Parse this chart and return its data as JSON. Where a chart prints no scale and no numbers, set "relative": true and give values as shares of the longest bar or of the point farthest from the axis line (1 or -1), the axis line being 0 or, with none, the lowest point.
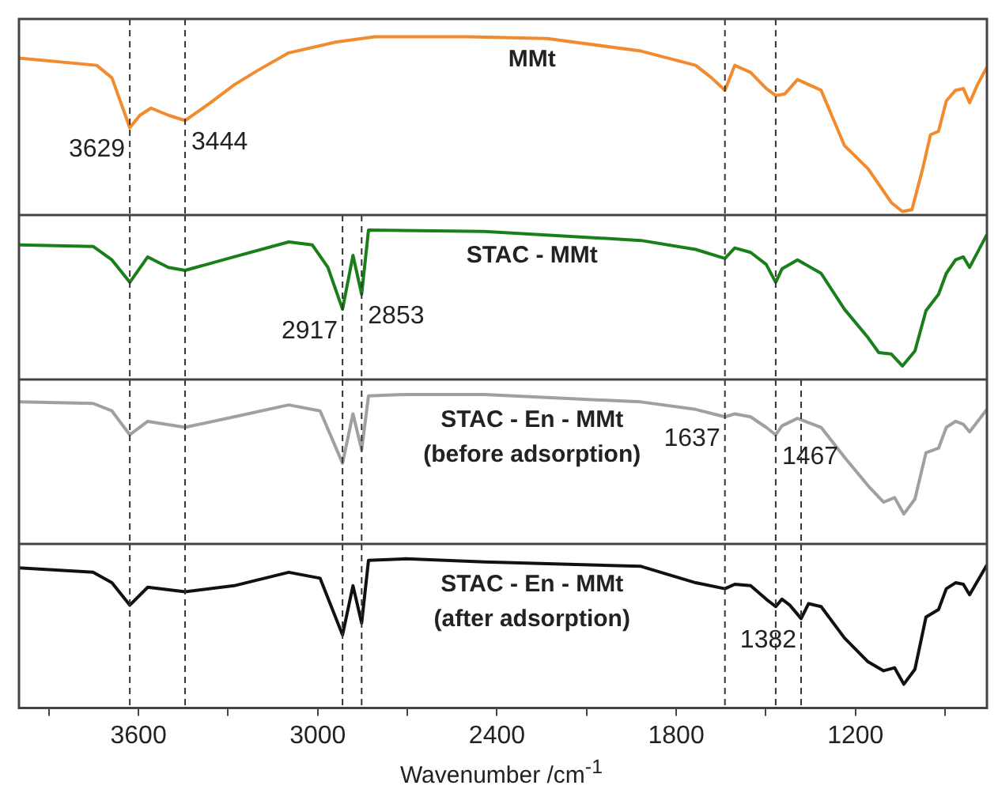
{
  "chart_data": [
    {
      "type": "line",
      "relative": true,
      "xlim": [
        4000,
        760
      ],
      "tick_labels": false,
      "legend": false,
      "grid": false,
      "marker": "none",
      "series": [
        {
          "name": "MMt",
          "color": "#f28a2e",
          "x": [
            4000,
            3740,
            3689,
            3629,
            3595,
            3558,
            3500,
            3444,
            3359,
            3280,
            3202,
            3097,
            2940,
            2809,
            2494,
            2232,
            1918,
            1735,
            1682,
            1637,
            1604,
            1551,
            1499,
            1467,
            1436,
            1394,
            1315,
            1237,
            1158,
            1080,
            1043,
            1011,
            975,
            949,
            922,
            896,
            865,
            839,
            818,
            792,
            760
          ],
          "values": [
            0.88,
            0.84,
            0.77,
            0.49,
            0.56,
            0.6,
            0.56,
            0.53,
            0.63,
            0.73,
            0.81,
            0.91,
            0.97,
            1.0,
            1.0,
            0.99,
            0.92,
            0.84,
            0.77,
            0.7,
            0.84,
            0.8,
            0.71,
            0.67,
            0.68,
            0.76,
            0.7,
            0.39,
            0.26,
            0.07,
            0.02,
            0.03,
            0.26,
            0.45,
            0.47,
            0.64,
            0.7,
            0.71,
            0.63,
            0.73,
            0.83
          ]
        }
      ],
      "ref_lines": [
        {
          "axis": "x",
          "value": 3629,
          "color": "#333333",
          "line_style": "dashed"
        },
        {
          "axis": "x",
          "value": 3444,
          "color": "#333333",
          "line_style": "dashed"
        },
        {
          "axis": "x",
          "value": 1637,
          "color": "#333333",
          "line_style": "dashed"
        },
        {
          "axis": "x",
          "value": 1467,
          "color": "#333333",
          "line_style": "dashed"
        }
      ],
      "annotations": [
        {
          "text": "3629",
          "x": 3629,
          "y": 0.49
        },
        {
          "text": "3444",
          "x": 3444,
          "y": 0.53
        }
      ]
    },
    {
      "type": "line",
      "relative": true,
      "xlim": [
        4000,
        760
      ],
      "tick_labels": false,
      "legend": false,
      "grid": false,
      "marker": "none",
      "series": [
        {
          "name": "STAC - MMt",
          "color": "#1a7f1a",
          "x": [
            4000,
            3752,
            3689,
            3629,
            3569,
            3500,
            3444,
            3280,
            3097,
            3018,
            2966,
            2917,
            2882,
            2853,
            2830,
            2442,
            1918,
            1735,
            1637,
            1604,
            1551,
            1499,
            1467,
            1446,
            1394,
            1315,
            1237,
            1158,
            1122,
            1080,
            1043,
            1001,
            964,
            922,
            896,
            865,
            839,
            818,
            760
          ],
          "values": [
            0.9,
            0.89,
            0.8,
            0.65,
            0.82,
            0.75,
            0.73,
            0.82,
            0.92,
            0.9,
            0.75,
            0.47,
            0.83,
            0.57,
            1.0,
            0.99,
            0.93,
            0.87,
            0.81,
            0.88,
            0.85,
            0.77,
            0.65,
            0.74,
            0.8,
            0.71,
            0.47,
            0.28,
            0.18,
            0.17,
            0.09,
            0.19,
            0.46,
            0.57,
            0.71,
            0.8,
            0.82,
            0.75,
            0.97
          ]
        }
      ],
      "ref_lines": [
        {
          "axis": "x",
          "value": 3629,
          "color": "#333333",
          "line_style": "dashed"
        },
        {
          "axis": "x",
          "value": 3444,
          "color": "#333333",
          "line_style": "dashed"
        },
        {
          "axis": "x",
          "value": 2917,
          "color": "#333333",
          "line_style": "dashed"
        },
        {
          "axis": "x",
          "value": 2853,
          "color": "#333333",
          "line_style": "dashed"
        },
        {
          "axis": "x",
          "value": 1637,
          "color": "#333333",
          "line_style": "dashed"
        },
        {
          "axis": "x",
          "value": 1467,
          "color": "#333333",
          "line_style": "dashed"
        }
      ],
      "annotations": [
        {
          "text": "2917",
          "x": 2917,
          "y": 0.47
        },
        {
          "text": "2853",
          "x": 2853,
          "y": 0.57
        }
      ]
    },
    {
      "type": "line",
      "relative": true,
      "xlim": [
        4000,
        760
      ],
      "tick_labels": false,
      "legend": false,
      "grid": false,
      "marker": "none",
      "series": [
        {
          "name": "STAC - En - MMt\n(before adsorption)",
          "color": "#a0a0a0",
          "x": [
            4000,
            3752,
            3689,
            3629,
            3569,
            3444,
            3280,
            3097,
            2992,
            2917,
            2882,
            2853,
            2830,
            2704,
            2442,
            1918,
            1735,
            1637,
            1604,
            1551,
            1499,
            1467,
            1446,
            1394,
            1315,
            1237,
            1158,
            1106,
            1069,
            1038,
            1001,
            964,
            922,
            896,
            865,
            839,
            818,
            760
          ],
          "values": [
            0.95,
            0.94,
            0.89,
            0.73,
            0.82,
            0.78,
            0.85,
            0.93,
            0.89,
            0.54,
            0.87,
            0.63,
            0.99,
            1.0,
            1.0,
            0.95,
            0.9,
            0.85,
            0.87,
            0.85,
            0.78,
            0.73,
            0.79,
            0.84,
            0.78,
            0.58,
            0.39,
            0.28,
            0.31,
            0.2,
            0.3,
            0.61,
            0.64,
            0.78,
            0.82,
            0.8,
            0.75,
            0.9
          ]
        }
      ],
      "ref_lines": [
        {
          "axis": "x",
          "value": 3629,
          "color": "#333333",
          "line_style": "dashed"
        },
        {
          "axis": "x",
          "value": 3444,
          "color": "#333333",
          "line_style": "dashed"
        },
        {
          "axis": "x",
          "value": 2917,
          "color": "#333333",
          "line_style": "dashed"
        },
        {
          "axis": "x",
          "value": 2853,
          "color": "#333333",
          "line_style": "dashed"
        },
        {
          "axis": "x",
          "value": 1637,
          "color": "#333333",
          "line_style": "dashed"
        },
        {
          "axis": "x",
          "value": 1467,
          "color": "#333333",
          "line_style": "dashed"
        },
        {
          "axis": "x",
          "value": 1382,
          "color": "#333333",
          "line_style": "dashed"
        }
      ],
      "annotations": [
        {
          "text": "1637",
          "x": 1637,
          "y": 0.85
        },
        {
          "text": "1467",
          "x": 1467,
          "y": 0.73
        }
      ]
    },
    {
      "type": "line",
      "relative": true,
      "xlim": [
        4000,
        760
      ],
      "xticks": [
        {
          "value": 3900,
          "label": null
        },
        3600,
        {
          "value": 3300,
          "label": null
        },
        3000,
        {
          "value": 2700,
          "label": null
        },
        2400,
        {
          "value": 2100,
          "label": null
        },
        1800,
        {
          "value": 1500,
          "label": null
        },
        1200,
        {
          "value": 900,
          "label": null
        }
      ],
      "xlabel": "Wavenumber /cm$^{-1}$",
      "legend": false,
      "grid": false,
      "marker": "none",
      "series": [
        {
          "name": "STAC - En - MMt\n(after adsorption)",
          "color": "#111111",
          "x": [
            4000,
            3752,
            3689,
            3629,
            3569,
            3444,
            3280,
            3097,
            2992,
            2917,
            2882,
            2853,
            2830,
            2704,
            2442,
            1918,
            1735,
            1637,
            1604,
            1551,
            1499,
            1467,
            1446,
            1420,
            1382,
            1357,
            1315,
            1237,
            1158,
            1106,
            1069,
            1038,
            1001,
            964,
            922,
            896,
            865,
            839,
            818,
            760
          ],
          "values": [
            0.94,
            0.91,
            0.84,
            0.69,
            0.81,
            0.78,
            0.82,
            0.91,
            0.87,
            0.49,
            0.82,
            0.57,
            0.99,
            1.0,
            0.98,
            0.95,
            0.84,
            0.8,
            0.83,
            0.82,
            0.73,
            0.68,
            0.73,
            0.69,
            0.6,
            0.7,
            0.68,
            0.47,
            0.31,
            0.25,
            0.27,
            0.16,
            0.26,
            0.61,
            0.66,
            0.8,
            0.84,
            0.83,
            0.76,
            0.96
          ]
        }
      ],
      "ref_lines": [
        {
          "axis": "x",
          "value": 3629,
          "color": "#333333",
          "line_style": "dashed"
        },
        {
          "axis": "x",
          "value": 3444,
          "color": "#333333",
          "line_style": "dashed"
        },
        {
          "axis": "x",
          "value": 2917,
          "color": "#333333",
          "line_style": "dashed"
        },
        {
          "axis": "x",
          "value": 2853,
          "color": "#333333",
          "line_style": "dashed"
        },
        {
          "axis": "x",
          "value": 1637,
          "color": "#333333",
          "line_style": "dashed"
        },
        {
          "axis": "x",
          "value": 1467,
          "color": "#333333",
          "line_style": "dashed"
        },
        {
          "axis": "x",
          "value": 1382,
          "color": "#333333",
          "line_style": "dashed"
        }
      ],
      "annotations": [
        {
          "text": "1382",
          "x": 1382,
          "y": 0.6
        }
      ]
    }
  ]
}
